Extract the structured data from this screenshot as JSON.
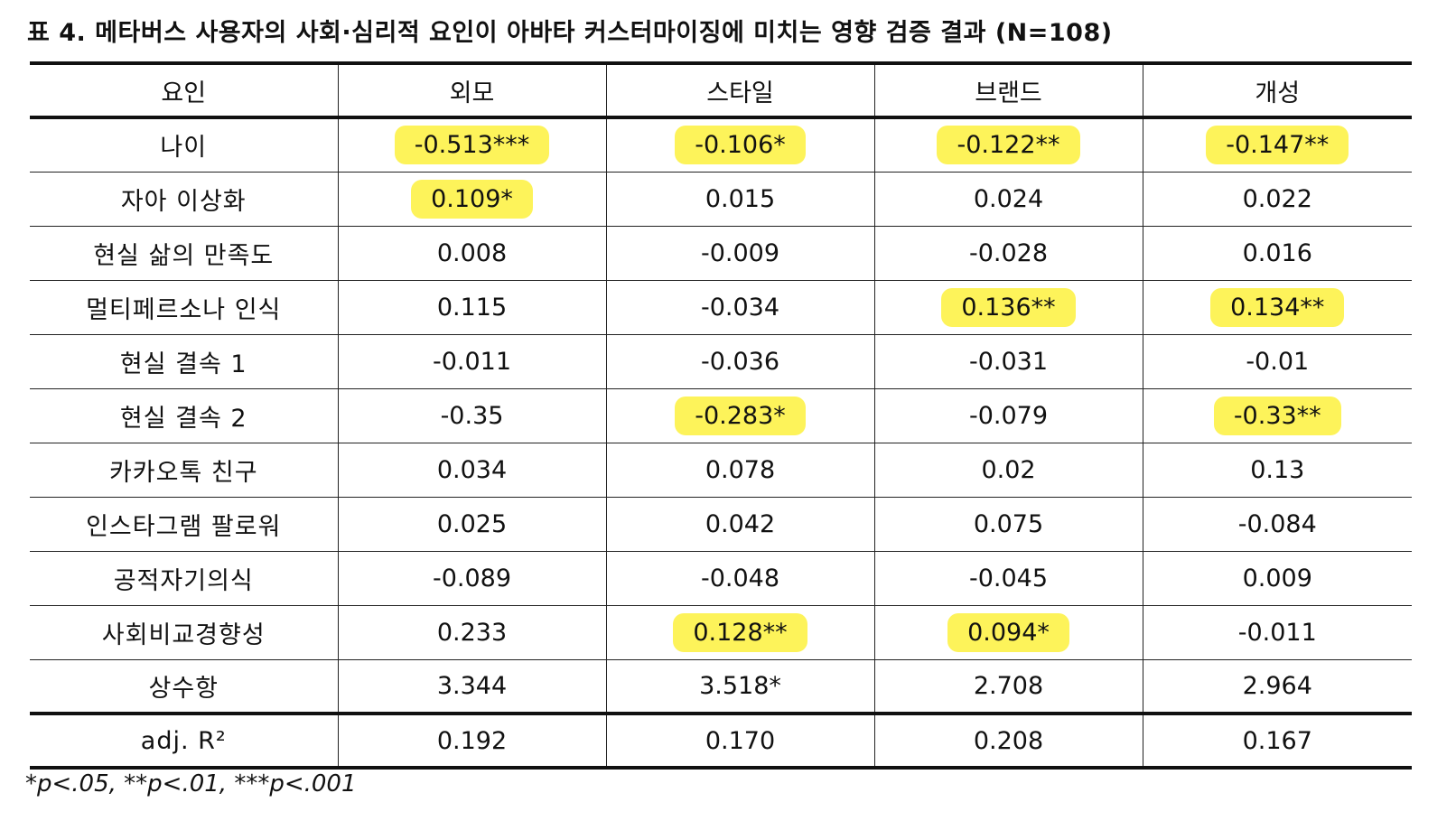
{
  "title": "표 4. 메타버스 사용자의 사회·심리적 요인이 아바타 커스터마이징에 미치는 영향 검증 결과 (N=108)",
  "highlight_color": "#fdf35a",
  "table": {
    "headers": [
      "요인",
      "외모",
      "스타일",
      "브랜드",
      "개성"
    ],
    "rows": [
      {
        "label": "나이",
        "cells": [
          {
            "v": "-0.513***",
            "hl": true
          },
          {
            "v": "-0.106*",
            "hl": true
          },
          {
            "v": "-0.122**",
            "hl": true
          },
          {
            "v": "-0.147**",
            "hl": true
          }
        ]
      },
      {
        "label": "자아 이상화",
        "cells": [
          {
            "v": "0.109*",
            "hl": true
          },
          {
            "v": "0.015",
            "hl": false
          },
          {
            "v": "0.024",
            "hl": false
          },
          {
            "v": "0.022",
            "hl": false
          }
        ]
      },
      {
        "label": "현실 삶의 만족도",
        "cells": [
          {
            "v": "0.008",
            "hl": false
          },
          {
            "v": "-0.009",
            "hl": false
          },
          {
            "v": "-0.028",
            "hl": false
          },
          {
            "v": "0.016",
            "hl": false
          }
        ]
      },
      {
        "label": "멀티페르소나 인식",
        "cells": [
          {
            "v": "0.115",
            "hl": false
          },
          {
            "v": "-0.034",
            "hl": false
          },
          {
            "v": "0.136**",
            "hl": true
          },
          {
            "v": "0.134**",
            "hl": true
          }
        ]
      },
      {
        "label": "현실 결속 1",
        "cells": [
          {
            "v": "-0.011",
            "hl": false
          },
          {
            "v": "-0.036",
            "hl": false
          },
          {
            "v": "-0.031",
            "hl": false
          },
          {
            "v": "-0.01",
            "hl": false
          }
        ]
      },
      {
        "label": "현실 결속 2",
        "cells": [
          {
            "v": "-0.35",
            "hl": false
          },
          {
            "v": "-0.283*",
            "hl": true
          },
          {
            "v": "-0.079",
            "hl": false
          },
          {
            "v": "-0.33**",
            "hl": true
          }
        ]
      },
      {
        "label": "카카오톡 친구",
        "cells": [
          {
            "v": "0.034",
            "hl": false
          },
          {
            "v": "0.078",
            "hl": false
          },
          {
            "v": "0.02",
            "hl": false
          },
          {
            "v": "0.13",
            "hl": false
          }
        ]
      },
      {
        "label": "인스타그램 팔로워",
        "cells": [
          {
            "v": "0.025",
            "hl": false
          },
          {
            "v": "0.042",
            "hl": false
          },
          {
            "v": "0.075",
            "hl": false
          },
          {
            "v": "-0.084",
            "hl": false
          }
        ]
      },
      {
        "label": "공적자기의식",
        "cells": [
          {
            "v": "-0.089",
            "hl": false
          },
          {
            "v": "-0.048",
            "hl": false
          },
          {
            "v": "-0.045",
            "hl": false
          },
          {
            "v": "0.009",
            "hl": false
          }
        ]
      },
      {
        "label": "사회비교경향성",
        "cells": [
          {
            "v": "0.233",
            "hl": false
          },
          {
            "v": "0.128**",
            "hl": true
          },
          {
            "v": "0.094*",
            "hl": true
          },
          {
            "v": "-0.011",
            "hl": false
          }
        ]
      },
      {
        "label": "상수항",
        "cells": [
          {
            "v": "3.344",
            "hl": false
          },
          {
            "v": "3.518*",
            "hl": false
          },
          {
            "v": "2.708",
            "hl": false
          },
          {
            "v": "2.964",
            "hl": false
          }
        ]
      },
      {
        "label": "adj. R²",
        "cells": [
          {
            "v": "0.192",
            "hl": false
          },
          {
            "v": "0.170",
            "hl": false
          },
          {
            "v": "0.208",
            "hl": false
          },
          {
            "v": "0.167",
            "hl": false
          }
        ]
      }
    ]
  },
  "footnote": "*p<.05, **p<.01, ***p<.001"
}
